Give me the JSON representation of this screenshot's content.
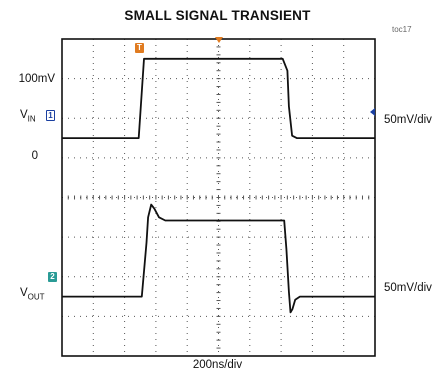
{
  "chart_data": {
    "type": "line",
    "title": "SMALL SIGNAL TRANSIENT",
    "figure_id": "toc17",
    "xlabel": "200ns/div",
    "x_divisions": 10,
    "y_divisions": 8,
    "grid": true,
    "channels": [
      {
        "name": "VIN",
        "label_main": "V",
        "label_sub": "IN",
        "marker": "1",
        "scale": "50mV/div",
        "levels": {
          "high": "100mV",
          "low": "0"
        },
        "points": [
          [
            0,
            0
          ],
          [
            2.45,
            0
          ],
          [
            2.62,
            0.1
          ],
          [
            7.05,
            0.1
          ],
          [
            7.2,
            0.085
          ],
          [
            7.25,
            0.04
          ],
          [
            7.35,
            0.003
          ],
          [
            7.5,
            0
          ],
          [
            10,
            0
          ]
        ]
      },
      {
        "name": "VOUT",
        "label_main": "V",
        "label_sub": "OUT",
        "marker": "2",
        "scale": "50mV/div",
        "points": [
          [
            0,
            0
          ],
          [
            2.55,
            0
          ],
          [
            2.7,
            0.068
          ],
          [
            2.75,
            0.1
          ],
          [
            2.85,
            0.116
          ],
          [
            2.95,
            0.111
          ],
          [
            3.1,
            0.1
          ],
          [
            3.3,
            0.096
          ],
          [
            7.1,
            0.096
          ],
          [
            7.17,
            0.06
          ],
          [
            7.25,
            0.006
          ],
          [
            7.3,
            -0.02
          ],
          [
            7.36,
            -0.016
          ],
          [
            7.45,
            -0.004
          ],
          [
            7.6,
            0
          ],
          [
            10,
            0
          ]
        ]
      }
    ],
    "trigger_marker": "T",
    "colors": {
      "trace": "#111111",
      "grid": "#555555",
      "ch1": "#1a3fa0",
      "ch2": "#2a9b96",
      "trigger": "#e07b20"
    }
  }
}
